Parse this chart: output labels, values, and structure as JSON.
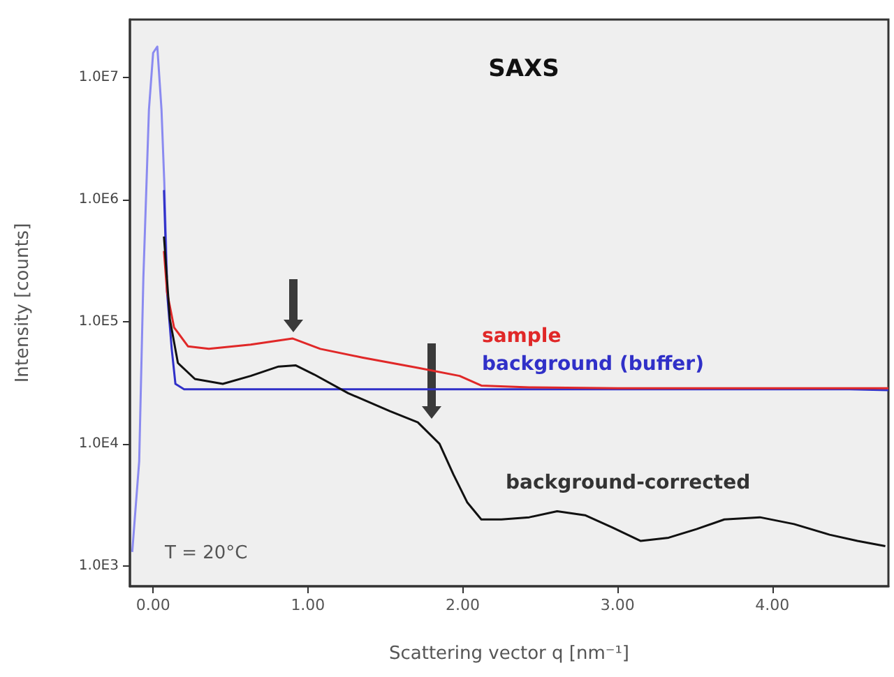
{
  "chart_data": {
    "type": "line",
    "title": "SAXS",
    "xlabel": "Scattering vector q [nm⁻¹]",
    "ylabel": "Intensity [counts]",
    "log": "y",
    "xlim": [
      -0.15,
      4.75
    ],
    "xticks": [
      {
        "value": 0,
        "label": "0.00"
      },
      {
        "value": 1,
        "label": "1.00"
      },
      {
        "value": 2,
        "label": "2.00"
      },
      {
        "value": 3,
        "label": "3.00"
      },
      {
        "value": 4,
        "label": "4.00"
      }
    ],
    "ylim": [
      680,
      30000000
    ],
    "yticks": [
      {
        "value": 1000,
        "label": "1.0E3"
      },
      {
        "value": 10000,
        "label": "1.0E4"
      },
      {
        "value": 100000,
        "label": "1.0E5"
      },
      {
        "value": 1000000,
        "label": "1.0E6"
      },
      {
        "value": 10000000,
        "label": "1.0E7"
      }
    ],
    "grid": false,
    "legend": false,
    "marker": "none",
    "line_style": "solid",
    "annotations": [
      "T = 20°C"
    ],
    "series": [
      {
        "color": "#8a8af0",
        "x": [
          -0.135,
          -0.09,
          -0.063,
          -0.027,
          0,
          0.027,
          0.054,
          0.072,
          0.09
        ],
        "values": [
          1300,
          7200,
          230000,
          5500000,
          16000000,
          18000000,
          5500000,
          1400000,
          230000
        ]
      },
      {
        "name": "background (buffer)",
        "color": "#3030c8",
        "x": [
          0.07,
          0.09,
          0.12,
          0.144,
          0.2,
          0.5,
          1,
          1.5,
          2,
          2.5,
          3,
          3.5,
          4,
          4.5,
          4.75
        ],
        "values": [
          1200000,
          175000,
          60000,
          31000,
          28000,
          28000,
          28000,
          28000,
          28000,
          28000,
          28000,
          28000,
          28000,
          28000,
          27500
        ]
      },
      {
        "name": "sample",
        "color": "#e02828",
        "x": [
          0.07,
          0.09,
          0.135,
          0.225,
          0.36,
          0.63,
          0.9,
          1.08,
          1.35,
          1.71,
          1.98,
          2.12,
          2.43,
          3,
          3.5,
          4,
          4.5,
          4.75
        ],
        "values": [
          380000,
          175000,
          90000,
          63000,
          60000,
          65000,
          73000,
          60000,
          51000,
          42000,
          36000,
          30000,
          29000,
          28500,
          28500,
          28500,
          28500,
          28500
        ]
      },
      {
        "name": "background-corrected",
        "color": "#111111",
        "x": [
          0.07,
          0.108,
          0.16,
          0.27,
          0.45,
          0.63,
          0.81,
          0.92,
          1.04,
          1.26,
          1.53,
          1.71,
          1.85,
          1.94,
          2.03,
          2.12,
          2.25,
          2.43,
          2.61,
          2.79,
          2.97,
          3.15,
          3.33,
          3.51,
          3.69,
          3.92,
          4.14,
          4.37,
          4.55,
          4.73
        ],
        "values": [
          500000,
          105000,
          46000,
          34000,
          31000,
          36000,
          43000,
          44000,
          37000,
          26000,
          18500,
          15000,
          10000,
          5600,
          3300,
          2400,
          2400,
          2500,
          2800,
          2600,
          2050,
          1600,
          1700,
          2000,
          2400,
          2500,
          2200,
          1800,
          1600,
          1450
        ]
      }
    ]
  }
}
